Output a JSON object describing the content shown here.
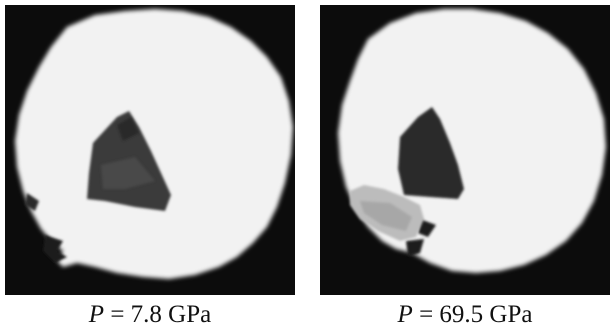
{
  "panels": [
    {
      "caption": {
        "symbol": "P",
        "text": " = 7.8 GPa"
      }
    },
    {
      "caption": {
        "symbol": "P",
        "text": " = 69.5 GPa"
      }
    }
  ],
  "colors": {
    "background": "#0c0c0c",
    "sample_chamber": "#f2f2f2",
    "crystal": "#3a3a3a",
    "ruby_chip": "#bcbcbc"
  }
}
